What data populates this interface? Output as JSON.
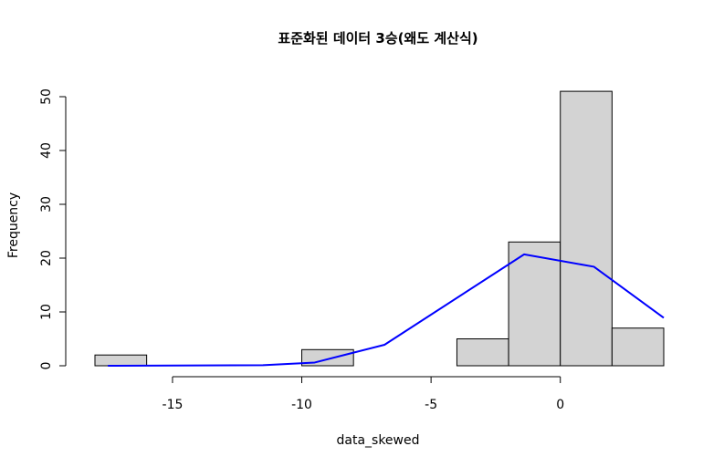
{
  "chart_data": {
    "type": "bar",
    "title": "표준화된 데이터 3승(왜도 계산식)",
    "xlabel": "data_skewed",
    "ylabel": "Frequency",
    "xlim": [
      -18,
      4
    ],
    "ylim": [
      0,
      52
    ],
    "x_ticks": [
      -15,
      -10,
      -5,
      0
    ],
    "x_tick_labels": [
      "-15",
      "-10",
      "-5",
      "0"
    ],
    "y_ticks": [
      0,
      10,
      20,
      30,
      40,
      50
    ],
    "y_tick_labels": [
      "0",
      "10",
      "20",
      "30",
      "40",
      "50"
    ],
    "bins": [
      {
        "start": -18,
        "end": -16,
        "count": 2
      },
      {
        "start": -16,
        "end": -14,
        "count": 0
      },
      {
        "start": -14,
        "end": -12,
        "count": 0
      },
      {
        "start": -12,
        "end": -10,
        "count": 0
      },
      {
        "start": -10,
        "end": -8,
        "count": 3
      },
      {
        "start": -8,
        "end": -6,
        "count": 0
      },
      {
        "start": -6,
        "end": -4,
        "count": 0
      },
      {
        "start": -4,
        "end": -2,
        "count": 5
      },
      {
        "start": -2,
        "end": 0,
        "count": 23
      },
      {
        "start": 0,
        "end": 2,
        "count": 51
      },
      {
        "start": 2,
        "end": 4,
        "count": 7
      }
    ],
    "series": [
      {
        "type": "line",
        "color": "#0000ff",
        "x": [
          -17.5,
          -11.5,
          -9.5,
          -6.8,
          -1.4,
          1.3,
          4.0
        ],
        "y": [
          0,
          0.1,
          0.6,
          3.9,
          20.7,
          18.4,
          8.9
        ]
      }
    ],
    "bar_fill": "#d3d3d3",
    "bar_stroke": "#000000",
    "grid": false,
    "legend": "none"
  }
}
